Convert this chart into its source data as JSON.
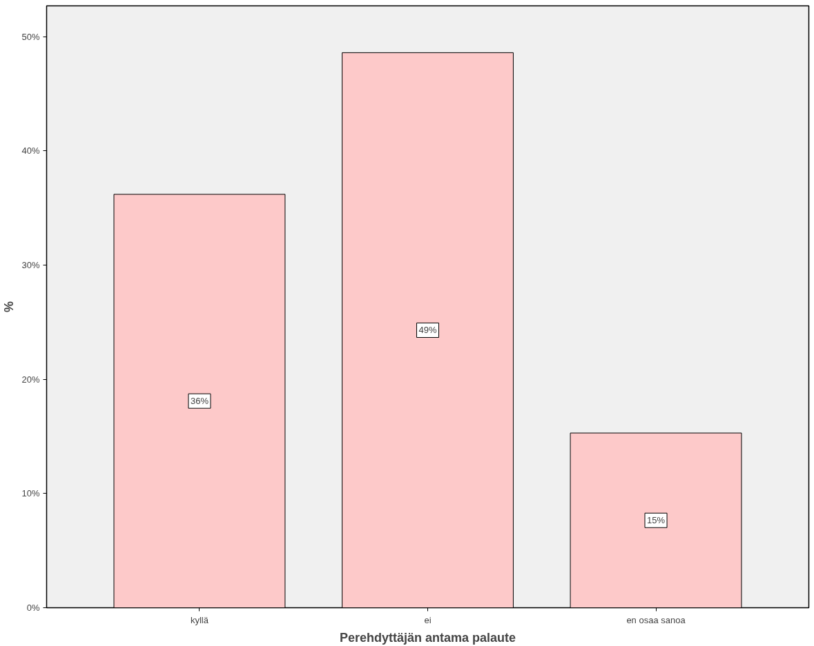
{
  "chart_data": {
    "type": "bar",
    "xlabel": "Perehdyttäjän antama palaute",
    "ylabel": "%",
    "categories": [
      "kyllä",
      "ei",
      "en osaa sanoa"
    ],
    "values": [
      36.2,
      48.6,
      15.3
    ],
    "value_labels": [
      "36%",
      "49%",
      "15%"
    ],
    "color": "#fdc9c9",
    "ylim": [
      0,
      52.7
    ],
    "yticks": [
      {
        "value": 0,
        "label": "0%"
      },
      {
        "value": 10,
        "label": "10%"
      },
      {
        "value": 20,
        "label": "20%"
      },
      {
        "value": 30,
        "label": "30%"
      },
      {
        "value": 40,
        "label": "40%"
      },
      {
        "value": 50,
        "label": "50%"
      }
    ],
    "grid": false
  }
}
